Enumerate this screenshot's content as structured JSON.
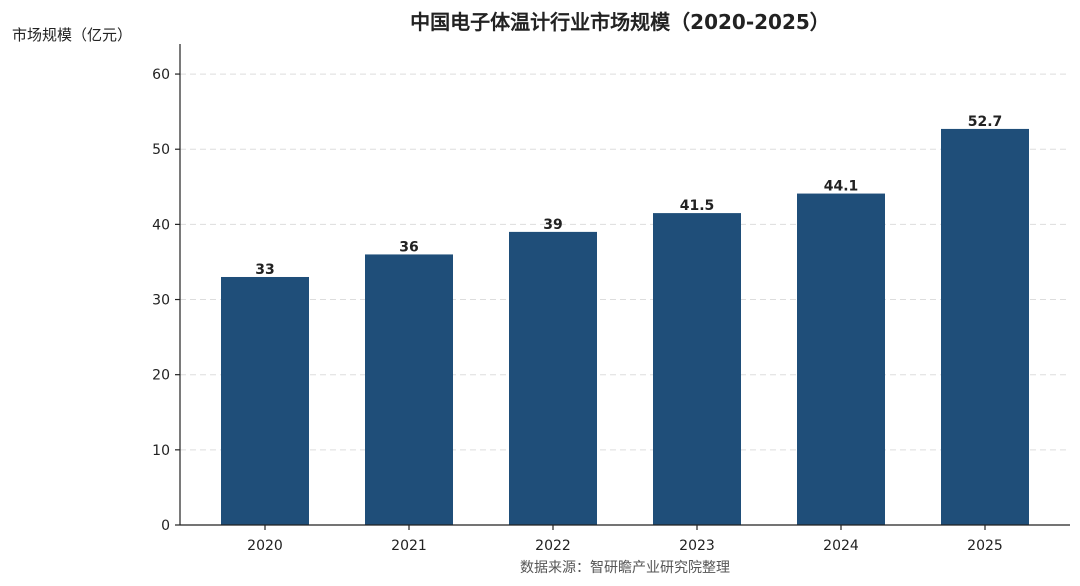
{
  "chart_data": {
    "type": "bar",
    "title": "中国电子体温计行业市场规模（2020-2025）",
    "ylabel": "市场规模（亿元）",
    "xlabel": "",
    "categories": [
      "2020",
      "2021",
      "2022",
      "2023",
      "2024",
      "2025"
    ],
    "values": [
      33,
      36,
      39,
      41.5,
      44.1,
      52.7
    ],
    "data_labels": [
      "33",
      "36",
      "39",
      "41.5",
      "44.1",
      "52.7"
    ],
    "ylim": [
      0,
      64
    ],
    "yticks": [
      0,
      10,
      20,
      30,
      40,
      50,
      60
    ],
    "grid": true,
    "bar_color": "#1f4e79"
  },
  "source_note": "数据来源：智研瞻产业研究院整理"
}
